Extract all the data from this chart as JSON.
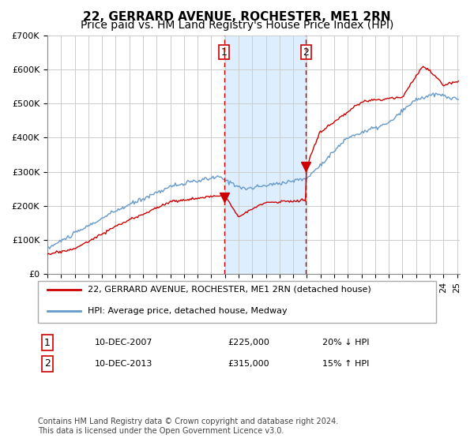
{
  "title": "22, GERRARD AVENUE, ROCHESTER, ME1 2RN",
  "subtitle": "Price paid vs. HM Land Registry's House Price Index (HPI)",
  "ylim": [
    0,
    700000
  ],
  "yticks": [
    0,
    100000,
    200000,
    300000,
    400000,
    500000,
    600000,
    700000
  ],
  "ytick_labels": [
    "£0",
    "£100K",
    "£200K",
    "£300K",
    "£400K",
    "£500K",
    "£600K",
    "£700K"
  ],
  "red_color": "#cc0000",
  "blue_color": "#6699cc",
  "bg_color": "#ffffff",
  "grid_color": "#cccccc",
  "shade_color": "#ddeeff",
  "marker1_date": 2007.94,
  "marker1_value": 225000,
  "marker2_date": 2013.94,
  "marker2_value": 315000,
  "vline1": 2007.94,
  "vline2": 2013.94,
  "legend_red": "22, GERRARD AVENUE, ROCHESTER, ME1 2RN (detached house)",
  "legend_blue": "HPI: Average price, detached house, Medway",
  "table_row1": [
    "1",
    "10-DEC-2007",
    "£225,000",
    "20% ↓ HPI"
  ],
  "table_row2": [
    "2",
    "10-DEC-2013",
    "£315,000",
    "15% ↑ HPI"
  ],
  "footnote": "Contains HM Land Registry data © Crown copyright and database right 2024.\nThis data is licensed under the Open Government Licence v3.0.",
  "title_fontsize": 11,
  "subtitle_fontsize": 10,
  "tick_fontsize": 8,
  "legend_fontsize": 8,
  "table_fontsize": 8,
  "footnote_fontsize": 7
}
